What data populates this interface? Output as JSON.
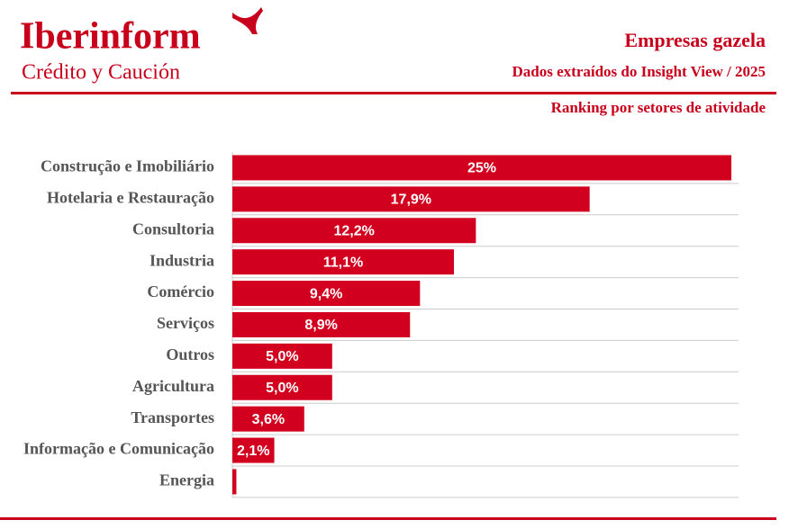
{
  "header": {
    "brand": "Iberinform",
    "tagline": "Crédito y Caución"
  },
  "chart_data": {
    "type": "bar",
    "orientation": "horizontal",
    "title": "Empresas gazela",
    "subtitle": "Dados extraídos do Insight View / 2025",
    "caption": "Ranking por setores de atividade",
    "categories": [
      "Construção e Imobiliário",
      "Hotelaria e Restauração",
      "Consultoria",
      "Industria",
      "Comércio",
      "Serviços",
      "Outros",
      "Agricultura",
      "Transportes",
      "Informação e Comunicação",
      "Energia"
    ],
    "values": [
      25,
      17.9,
      12.2,
      11.1,
      9.4,
      8.9,
      5.0,
      5.0,
      3.6,
      2.1,
      0.2
    ],
    "value_labels": [
      "25%",
      "17,9%",
      "12,2%",
      "11,1%",
      "9,4%",
      "8,9%",
      "5,0%",
      "5,0%",
      "3,6%",
      "2,1%",
      null
    ],
    "color": "#d2001e"
  }
}
